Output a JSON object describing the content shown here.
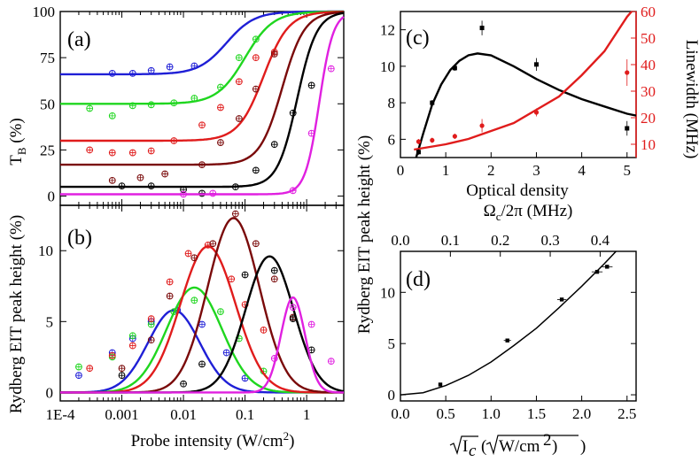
{
  "chart_data": [
    {
      "id": "a",
      "panel_label": "(a)",
      "type": "line",
      "xscale": "log",
      "xlim": [
        0.0001,
        4
      ],
      "ylim": [
        -5,
        100
      ],
      "yticks": [
        "0",
        "25",
        "50",
        "75",
        "100"
      ],
      "yticks_values": [
        0,
        25,
        50,
        75,
        100
      ],
      "ylabel_main": "T",
      "ylabel_sub": "B",
      "ylabel_unit": " (%)",
      "series": [
        {
          "name": "blue",
          "color": "#1f1fd6",
          "T0": 66,
          "x50": 0.05,
          "w": 0.5,
          "points": [
            [
              0.0007,
              66.5
            ],
            [
              0.0015,
              66.5
            ],
            [
              0.003,
              68
            ],
            [
              0.006,
              70
            ],
            [
              0.015,
              70.5
            ]
          ]
        },
        {
          "name": "green",
          "color": "#1fd61f",
          "T0": 50,
          "x50": 0.1,
          "w": 0.5,
          "points": [
            [
              0.0003,
              47.5
            ],
            [
              0.0007,
              43.5
            ],
            [
              0.0015,
              49
            ],
            [
              0.003,
              49.5
            ],
            [
              0.007,
              50.5
            ],
            [
              0.015,
              53
            ],
            [
              0.04,
              59
            ],
            [
              0.08,
              75
            ],
            [
              0.15,
              85
            ]
          ]
        },
        {
          "name": "red",
          "color": "#e01c1c",
          "T0": 30,
          "x50": 0.2,
          "w": 0.45,
          "points": [
            [
              0.0003,
              25
            ],
            [
              0.0007,
              23.5
            ],
            [
              0.0015,
              23.5
            ],
            [
              0.003,
              24.5
            ],
            [
              0.007,
              30
            ],
            [
              0.02,
              38.5
            ],
            [
              0.04,
              48
            ],
            [
              0.08,
              62
            ],
            [
              0.15,
              75
            ],
            [
              0.3,
              78
            ]
          ]
        },
        {
          "name": "darkred",
          "color": "#7a0a0a",
          "T0": 17,
          "x50": 0.4,
          "w": 0.4,
          "points": [
            [
              0.0007,
              8.5
            ],
            [
              0.002,
              10
            ],
            [
              0.005,
              12
            ],
            [
              0.02,
              17
            ],
            [
              0.04,
              29
            ],
            [
              0.08,
              42
            ],
            [
              0.15,
              58
            ],
            [
              0.3,
              77
            ]
          ]
        },
        {
          "name": "black",
          "color": "#000000",
          "T0": 5,
          "x50": 0.7,
          "w": 0.35,
          "points": [
            [
              0.001,
              5.5
            ],
            [
              0.003,
              5.5
            ],
            [
              0.01,
              3.5
            ],
            [
              0.02,
              1.5
            ],
            [
              0.07,
              5
            ],
            [
              0.15,
              14
            ],
            [
              0.3,
              28
            ],
            [
              0.6,
              45
            ],
            [
              1.2,
              60
            ]
          ]
        },
        {
          "name": "magenta",
          "color": "#e020e0",
          "T0": 1,
          "x50": 1.6,
          "w": 0.25,
          "points": [
            [
              0.01,
              1
            ],
            [
              0.03,
              1.5
            ],
            [
              0.6,
              3
            ],
            [
              1.2,
              34
            ],
            [
              2.5,
              69
            ]
          ]
        }
      ]
    },
    {
      "id": "b",
      "panel_label": "(b)",
      "type": "line",
      "xscale": "log",
      "xlim": [
        0.0001,
        4
      ],
      "ylim": [
        -0.6,
        13.2
      ],
      "xticks": [
        "1E-4",
        "0.001",
        "0.01",
        "0.1",
        "1"
      ],
      "xticks_values": [
        0.0001,
        0.001,
        0.01,
        0.1,
        1
      ],
      "yticks": [
        "0",
        "5",
        "10"
      ],
      "yticks_values": [
        0,
        5,
        10
      ],
      "xlabel_main": "Probe intensity (W/cm",
      "xlabel_sup": "2",
      "xlabel_close": ")",
      "ylabel": "Rydberg EIT peak height (%)",
      "series": [
        {
          "name": "blue",
          "color": "#1f1fd6",
          "peak": 5.8,
          "xpeak": 0.007,
          "w": 0.75,
          "points": [
            [
              0.0002,
              1.2
            ],
            [
              0.0007,
              2.8
            ],
            [
              0.0015,
              3.8
            ],
            [
              0.003,
              5.0
            ],
            [
              0.008,
              5.8
            ],
            [
              0.02,
              4.8
            ],
            [
              0.05,
              2.8
            ],
            [
              0.1,
              1.0
            ]
          ]
        },
        {
          "name": "green",
          "color": "#1fd61f",
          "peak": 7.4,
          "xpeak": 0.015,
          "w": 0.8,
          "points": [
            [
              0.0002,
              1.8
            ],
            [
              0.0007,
              2.5
            ],
            [
              0.0015,
              4.0
            ],
            [
              0.003,
              4.8
            ],
            [
              0.007,
              5.7
            ],
            [
              0.015,
              6.5
            ],
            [
              0.04,
              5.7
            ],
            [
              0.08,
              3.8
            ],
            [
              0.2,
              1.5
            ]
          ]
        },
        {
          "name": "red",
          "color": "#e01c1c",
          "peak": 10.3,
          "xpeak": 0.025,
          "w": 0.8,
          "points": [
            [
              0.0003,
              1.7
            ],
            [
              0.0007,
              2.6
            ],
            [
              0.0015,
              3.3
            ],
            [
              0.003,
              5.2
            ],
            [
              0.006,
              7.8
            ],
            [
              0.012,
              9.8
            ],
            [
              0.025,
              10.4
            ],
            [
              0.06,
              8.0
            ],
            [
              0.1,
              6.2
            ],
            [
              0.2,
              4.4
            ]
          ]
        },
        {
          "name": "darkred",
          "color": "#7a0a0a",
          "peak": 12.3,
          "xpeak": 0.065,
          "w": 0.75,
          "points": [
            [
              0.001,
              1.7
            ],
            [
              0.003,
              3.7
            ],
            [
              0.006,
              6.8
            ],
            [
              0.015,
              9.5
            ],
            [
              0.03,
              10.5
            ],
            [
              0.07,
              12.6
            ],
            [
              0.15,
              10.5
            ],
            [
              0.3,
              8.0
            ],
            [
              0.6,
              5.3
            ]
          ]
        },
        {
          "name": "black",
          "color": "#000000",
          "peak": 9.6,
          "xpeak": 0.25,
          "w": 0.7,
          "points": [
            [
              0.001,
              1.2
            ],
            [
              0.01,
              0.6
            ],
            [
              0.02,
              2.0
            ],
            [
              0.1,
              8.3
            ],
            [
              0.3,
              8.6
            ],
            [
              0.6,
              5.2
            ],
            [
              1.2,
              3.0
            ]
          ]
        },
        {
          "name": "magenta",
          "color": "#e020e0",
          "peak": 6.7,
          "xpeak": 0.6,
          "w": 0.35,
          "points": [
            [
              0.3,
              2.4
            ],
            [
              0.6,
              6.0
            ],
            [
              1.2,
              4.8
            ],
            [
              2.5,
              2.2
            ]
          ]
        }
      ]
    },
    {
      "id": "c",
      "panel_label": "(c)",
      "type": "line",
      "xlim": [
        0,
        5.2
      ],
      "ylim_left": [
        5,
        13
      ],
      "ylim_right": [
        5,
        60
      ],
      "xticks": [
        "0",
        "1",
        "2",
        "3",
        "4",
        "5"
      ],
      "xticks_values": [
        0,
        1,
        2,
        3,
        4,
        5
      ],
      "yticks_left": [
        "6",
        "8",
        "10",
        "12"
      ],
      "yticks_left_values": [
        6,
        8,
        10,
        12
      ],
      "yticks_right": [
        "10",
        "20",
        "30",
        "40",
        "50",
        "60"
      ],
      "yticks_right_values": [
        10,
        20,
        30,
        40,
        50,
        60
      ],
      "xlabel": "Optical density",
      "ylabel_right": "Linewidth (MHz)",
      "right_color": "#e01c1c",
      "height_points": [
        [
          0.4,
          5.3,
          0.15
        ],
        [
          0.7,
          8.0,
          0.15
        ],
        [
          1.2,
          9.9,
          0.15
        ],
        [
          1.8,
          12.1,
          0.4
        ],
        [
          3.0,
          10.1,
          0.35
        ],
        [
          5.0,
          6.6,
          0.4
        ]
      ],
      "height_fit": [
        [
          0.3,
          4.6
        ],
        [
          0.5,
          6.3
        ],
        [
          0.7,
          7.9
        ],
        [
          0.9,
          9.0
        ],
        [
          1.1,
          9.8
        ],
        [
          1.3,
          10.3
        ],
        [
          1.5,
          10.6
        ],
        [
          1.7,
          10.7
        ],
        [
          2.0,
          10.6
        ],
        [
          2.5,
          10.0
        ],
        [
          3.0,
          9.3
        ],
        [
          3.5,
          8.7
        ],
        [
          4.0,
          8.2
        ],
        [
          4.5,
          7.8
        ],
        [
          5.0,
          7.4
        ],
        [
          5.2,
          7.3
        ]
      ],
      "linewidth_points": [
        [
          0.4,
          11,
          1
        ],
        [
          0.7,
          11.5,
          1
        ],
        [
          1.2,
          13,
          1
        ],
        [
          1.8,
          17,
          2.5
        ],
        [
          3.0,
          22,
          1.5
        ],
        [
          5.0,
          37,
          5
        ]
      ],
      "linewidth_fit": [
        [
          0.3,
          8
        ],
        [
          1.0,
          10
        ],
        [
          1.5,
          12
        ],
        [
          2.0,
          15
        ],
        [
          2.5,
          18
        ],
        [
          3.0,
          23
        ],
        [
          3.5,
          28
        ],
        [
          4.0,
          36
        ],
        [
          4.5,
          45
        ],
        [
          5.0,
          58
        ],
        [
          5.2,
          62
        ]
      ]
    },
    {
      "id": "d",
      "panel_label": "(d)",
      "type": "scatter",
      "xlim": [
        0,
        2.6
      ],
      "ylim": [
        -0.6,
        14
      ],
      "xticks": [
        "0.0",
        "0.5",
        "1.0",
        "1.5",
        "2.0",
        "2.5"
      ],
      "xticks_values": [
        0,
        0.5,
        1.0,
        1.5,
        2.0,
        2.5
      ],
      "yticks": [
        "0",
        "5",
        "10"
      ],
      "yticks_values": [
        0,
        5,
        10
      ],
      "top_xticks": [
        "0.0",
        "0.1",
        "0.2",
        "0.3",
        "0.4"
      ],
      "top_xticks_values": [
        0,
        0.1,
        0.2,
        0.3,
        0.4
      ],
      "top_xlim": [
        0,
        0.472
      ],
      "top_xlabel": "Ω",
      "top_xlabel_sub": "c",
      "top_xlabel_rest": "/2π (MHz)",
      "xlabel": "√I_c (√W/cm²)",
      "points": [
        [
          0.44,
          1.0,
          0.02
        ],
        [
          1.18,
          5.3,
          0.04
        ],
        [
          1.78,
          9.3,
          0.05
        ],
        [
          2.17,
          12.0,
          0.06
        ],
        [
          2.28,
          12.5,
          0.06
        ]
      ],
      "fit": [
        [
          0.0,
          0.0
        ],
        [
          0.25,
          0.2
        ],
        [
          0.5,
          0.9
        ],
        [
          0.75,
          1.9
        ],
        [
          1.0,
          3.2
        ],
        [
          1.25,
          4.8
        ],
        [
          1.5,
          6.5
        ],
        [
          1.75,
          8.5
        ],
        [
          2.0,
          10.6
        ],
        [
          2.25,
          12.8
        ],
        [
          2.4,
          14.2
        ]
      ]
    }
  ]
}
